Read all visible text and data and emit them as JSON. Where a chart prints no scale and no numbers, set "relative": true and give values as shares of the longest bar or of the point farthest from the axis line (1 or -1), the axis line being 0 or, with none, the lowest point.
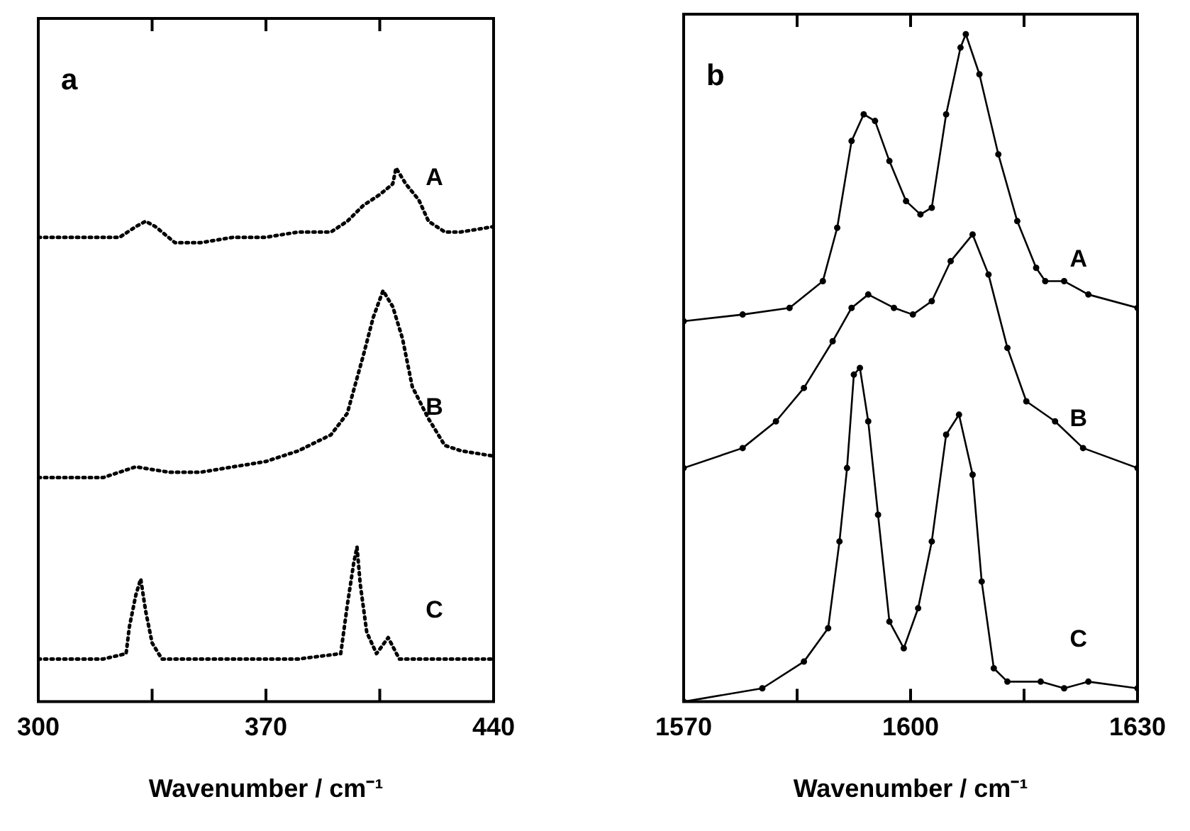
{
  "chart_data": [
    {
      "type": "line",
      "title": "a",
      "xlabel": "Wavenumber / cm⁻¹",
      "relative": true,
      "xlim": [
        300,
        440
      ],
      "xticks": [
        300,
        {
          "value": 335,
          "label": null
        },
        370,
        {
          "value": 405,
          "label": null
        },
        440
      ],
      "tick_labels": "x",
      "grid": false,
      "legend": false,
      "line_style": "dotted",
      "marker": "none",
      "series": [
        {
          "name": "A",
          "color": "#000000",
          "x": [
            300,
            312,
            325,
            330,
            333,
            336,
            342,
            350,
            360,
            370,
            380,
            390,
            395,
            400,
            405,
            409,
            410,
            413,
            417,
            420,
            425,
            430,
            440
          ],
          "values": [
            0.87,
            0.87,
            0.87,
            0.89,
            0.9,
            0.89,
            0.86,
            0.86,
            0.87,
            0.87,
            0.88,
            0.88,
            0.9,
            0.93,
            0.95,
            0.97,
            1.0,
            0.97,
            0.94,
            0.9,
            0.88,
            0.88,
            0.89
          ]
        },
        {
          "name": "B",
          "color": "#000000",
          "x": [
            300,
            310,
            320,
            330,
            340,
            350,
            360,
            370,
            380,
            390,
            395,
            400,
            403,
            406,
            409,
            412,
            415,
            420,
            425,
            430,
            440
          ],
          "values": [
            0.42,
            0.42,
            0.42,
            0.44,
            0.43,
            0.43,
            0.44,
            0.45,
            0.47,
            0.5,
            0.54,
            0.65,
            0.72,
            0.77,
            0.74,
            0.68,
            0.59,
            0.53,
            0.48,
            0.47,
            0.46
          ]
        },
        {
          "name": "C",
          "color": "#000000",
          "x": [
            300,
            320,
            327,
            328,
            330,
            331.5,
            333,
            335,
            338,
            350,
            380,
            393,
            395,
            397,
            398,
            399,
            401,
            404,
            407.6,
            411,
            420,
            440
          ],
          "values": [
            0.08,
            0.08,
            0.09,
            0.14,
            0.2,
            0.23,
            0.17,
            0.11,
            0.08,
            0.08,
            0.08,
            0.09,
            0.18,
            0.26,
            0.29,
            0.22,
            0.13,
            0.09,
            0.12,
            0.08,
            0.08,
            0.08
          ]
        }
      ]
    },
    {
      "type": "line",
      "title": "b",
      "xlabel": "Wavenumber / cm⁻¹",
      "relative": true,
      "xlim": [
        1570,
        1630
      ],
      "xticks": [
        1570,
        {
          "value": 1585,
          "label": null
        },
        1600,
        {
          "value": 1615,
          "label": null
        },
        1630
      ],
      "tick_labels": "x",
      "grid": false,
      "legend": false,
      "line_style": "solid",
      "marker": "circle",
      "series": [
        {
          "name": "A",
          "color": "#000000",
          "x": [
            1570,
            1577.8,
            1584,
            1588.4,
            1590.3,
            1592.2,
            1593.8,
            1595.3,
            1597.2,
            1599.4,
            1601.3,
            1602.8,
            1604.7,
            1606.6,
            1607.3,
            1609.1,
            1611.6,
            1614.1,
            1616.6,
            1617.8,
            1620.3,
            1623.5,
            1630
          ],
          "values": [
            0.57,
            0.58,
            0.59,
            0.63,
            0.71,
            0.84,
            0.88,
            0.87,
            0.81,
            0.75,
            0.73,
            0.74,
            0.88,
            0.98,
            1.0,
            0.94,
            0.82,
            0.72,
            0.65,
            0.63,
            0.63,
            0.61,
            0.59
          ]
        },
        {
          "name": "B",
          "color": "#000000",
          "x": [
            1570,
            1577.8,
            1582.2,
            1585.9,
            1589.7,
            1592.2,
            1594.4,
            1597.8,
            1600.3,
            1602.8,
            1605.3,
            1608.2,
            1610.3,
            1612.8,
            1615.3,
            1619.1,
            1622.8,
            1630
          ],
          "values": [
            0.35,
            0.38,
            0.42,
            0.47,
            0.54,
            0.59,
            0.61,
            0.59,
            0.58,
            0.6,
            0.66,
            0.7,
            0.64,
            0.53,
            0.45,
            0.42,
            0.38,
            0.35
          ]
        },
        {
          "name": "C",
          "color": "#000000",
          "x": [
            1570,
            1580.4,
            1585.9,
            1589.1,
            1590.6,
            1591.6,
            1592.5,
            1593.3,
            1594.4,
            1595.7,
            1597.2,
            1599.1,
            1601,
            1602.8,
            1604.7,
            1606.4,
            1608.2,
            1609.4,
            1611,
            1612.8,
            1617.2,
            1620.3,
            1623.5,
            1630
          ],
          "values": [
            0.0,
            0.02,
            0.06,
            0.11,
            0.24,
            0.35,
            0.49,
            0.5,
            0.42,
            0.28,
            0.12,
            0.08,
            0.14,
            0.24,
            0.4,
            0.43,
            0.34,
            0.18,
            0.05,
            0.03,
            0.03,
            0.02,
            0.03,
            0.02
          ]
        }
      ]
    }
  ]
}
